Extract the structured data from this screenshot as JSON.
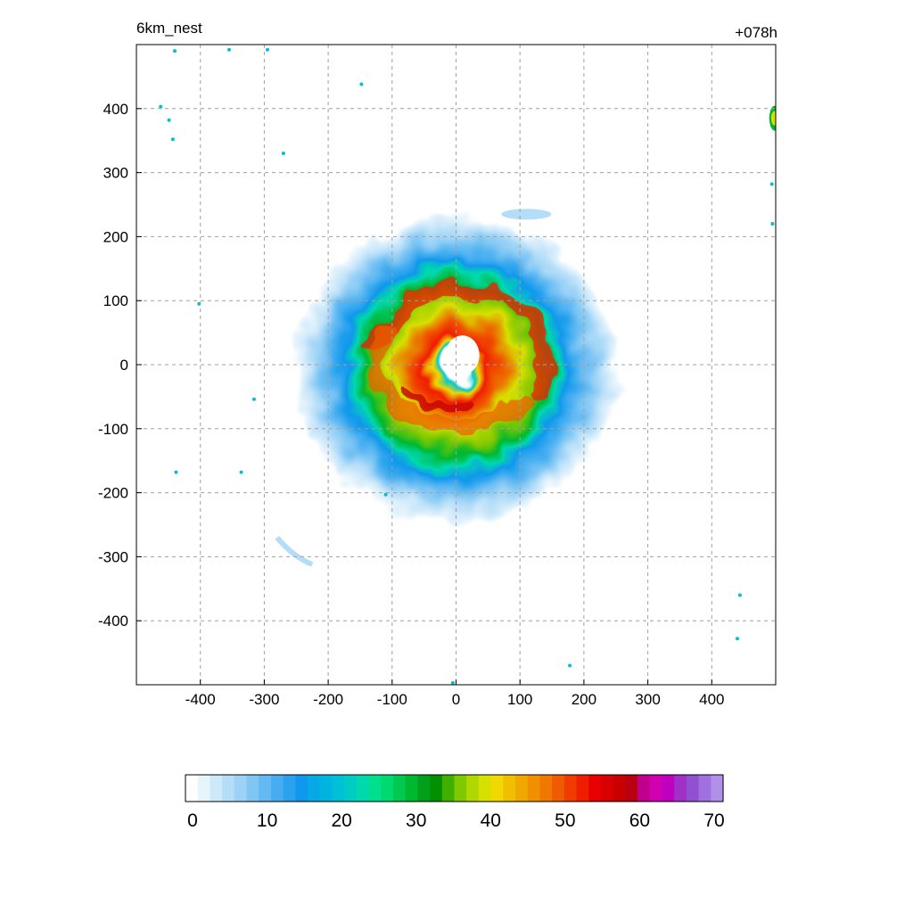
{
  "header": {
    "title": "6km_nest",
    "time": "+078h"
  },
  "chart_data": {
    "type": "heatmap",
    "title": "6km_nest",
    "subtitle": "+078h",
    "xlabel": "",
    "ylabel": "",
    "xlim": [
      -500,
      500
    ],
    "ylim": [
      -500,
      500
    ],
    "x_ticks": [
      "-400",
      "-300",
      "-200",
      "-100",
      "0",
      "100",
      "200",
      "300",
      "400"
    ],
    "y_ticks": [
      "400",
      "300",
      "200",
      "100",
      "0",
      "-100",
      "-200",
      "-300",
      "-400"
    ],
    "grid": true,
    "colorbar": {
      "range": [
        0,
        70
      ],
      "ticks": [
        "0",
        "10",
        "20",
        "30",
        "40",
        "50",
        "60",
        "70"
      ],
      "colors": [
        "#ffffff",
        "#e6f4fc",
        "#cde9fa",
        "#b4ddf8",
        "#9bd2f6",
        "#7fc6f4",
        "#63baf2",
        "#47adf0",
        "#2aa2ee",
        "#0f98ec",
        "#06a8e6",
        "#00b4e0",
        "#00c0d8",
        "#00ccc4",
        "#00d8ae",
        "#00e08c",
        "#00d870",
        "#00c850",
        "#00b830",
        "#00a01c",
        "#009000",
        "#40b000",
        "#80c800",
        "#b0d800",
        "#d8e000",
        "#f0d800",
        "#f0c000",
        "#f0a800",
        "#f09000",
        "#f07800",
        "#f05a00",
        "#f03c00",
        "#f01e00",
        "#e80000",
        "#d80000",
        "#c80000",
        "#b80010",
        "#c0008c",
        "#d000b0",
        "#c000c0",
        "#a030c8",
        "#9050d0",
        "#a070e0",
        "#b090e8"
      ]
    },
    "features": [
      {
        "name": "eye",
        "x": 10,
        "y": 15,
        "value": 0
      },
      {
        "name": "eyewall-ring",
        "x": 5,
        "y": 20,
        "value": 50
      },
      {
        "name": "outer-envelope",
        "x": 0,
        "y": 0,
        "value": 10
      },
      {
        "name": "northeast-edge-feature",
        "x": 497,
        "y": 385,
        "value": 30
      }
    ]
  }
}
